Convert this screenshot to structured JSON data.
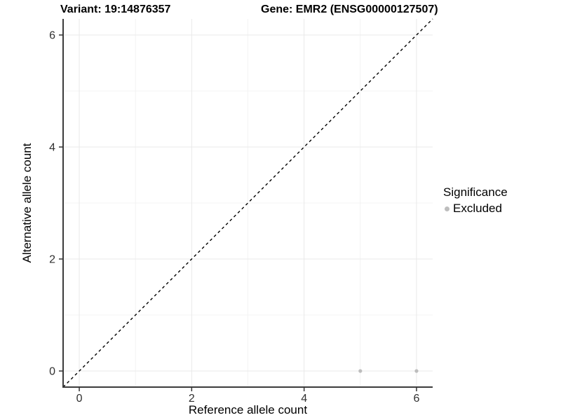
{
  "titles": {
    "variant": "Variant: 19:14876357",
    "gene": "Gene: EMR2 (ENSG00000127507)"
  },
  "chart_data": {
    "type": "scatter",
    "title_left": "Variant: 19:14876357",
    "title_right": "Gene: EMR2 (ENSG00000127507)",
    "xlabel": "Reference allele count",
    "ylabel": "Alternative allele count",
    "xlim": [
      -0.2875,
      6.2875
    ],
    "ylim": [
      -0.2875,
      6.2875
    ],
    "x_major_ticks": [
      0,
      2,
      4,
      6
    ],
    "y_major_ticks": [
      0,
      2,
      4,
      6
    ],
    "x_minor_gridlines": [
      1,
      3,
      5
    ],
    "y_minor_gridlines": [
      1,
      3,
      5
    ],
    "grid": true,
    "reference_line": {
      "type": "abline",
      "slope": 1,
      "intercept": 0,
      "style": "dashed",
      "color": "#000000"
    },
    "series": [
      {
        "name": "Excluded",
        "color": "#bdbdbd",
        "points": [
          {
            "x": 5,
            "y": 0
          },
          {
            "x": 6,
            "y": 0
          }
        ]
      }
    ],
    "legend": {
      "title": "Significance",
      "position": "right",
      "items": [
        {
          "label": "Excluded",
          "color": "#bdbdbd"
        }
      ]
    }
  },
  "colors": {
    "axis_line": "#3c3c3c",
    "tick_mark": "#333333",
    "tick_label": "#303030",
    "grid_major": "#e9e9e9",
    "grid_minor": "#f3f3f3",
    "background": "#ffffff"
  }
}
